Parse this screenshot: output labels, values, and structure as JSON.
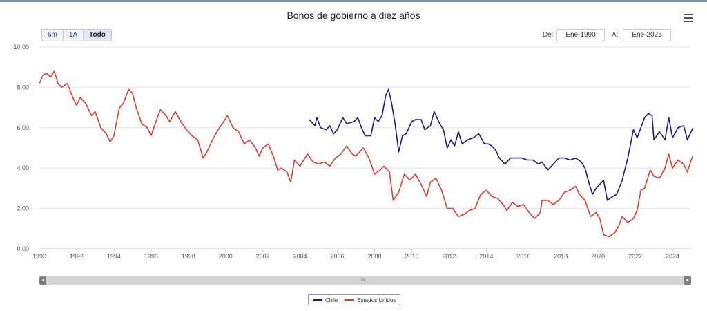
{
  "header": {
    "title": "Bonos de gobierno a diez años"
  },
  "range_selector": {
    "buttons": [
      {
        "label": "6m",
        "active": false
      },
      {
        "label": "1A",
        "active": false
      },
      {
        "label": "Todo",
        "active": true
      }
    ],
    "from_label": "De:",
    "from_value": "Ene-1990",
    "to_label": "A:",
    "to_value": "Ene-2025"
  },
  "colors": {
    "chile": "#1a1a8c",
    "usa": "#e8392c"
  },
  "navigator": {
    "grip": "III"
  },
  "chart_data": {
    "type": "line",
    "title": "Bonos de gobierno a diez años",
    "xlabel": "",
    "ylabel": "",
    "xlim": [
      1990,
      2025
    ],
    "ylim": [
      0,
      10
    ],
    "y_ticks": [
      "0,00",
      "2,00",
      "4,00",
      "6,00",
      "8,00",
      "10,00"
    ],
    "x_ticks": [
      "1990",
      "1992",
      "1994",
      "1996",
      "1998",
      "2000",
      "2002",
      "2004",
      "2006",
      "2008",
      "2010",
      "2012",
      "2014",
      "2016",
      "2018",
      "2020",
      "2022",
      "2024"
    ],
    "grid": true,
    "legend_position": "bottom-center",
    "series": [
      {
        "name": "Chile",
        "color": "#1a1a8c",
        "points": [
          [
            2004.5,
            6.4
          ],
          [
            2004.8,
            6.1
          ],
          [
            2004.9,
            6.5
          ],
          [
            2005.1,
            6.0
          ],
          [
            2005.4,
            5.9
          ],
          [
            2005.6,
            6.1
          ],
          [
            2005.8,
            5.7
          ],
          [
            2006.0,
            5.9
          ],
          [
            2006.3,
            6.5
          ],
          [
            2006.5,
            6.2
          ],
          [
            2006.9,
            6.3
          ],
          [
            2007.1,
            6.5
          ],
          [
            2007.3,
            6.0
          ],
          [
            2007.5,
            5.6
          ],
          [
            2007.8,
            5.6
          ],
          [
            2008.0,
            6.5
          ],
          [
            2008.2,
            6.3
          ],
          [
            2008.4,
            6.6
          ],
          [
            2008.6,
            7.6
          ],
          [
            2008.75,
            7.9
          ],
          [
            2008.9,
            7.3
          ],
          [
            2009.1,
            6.2
          ],
          [
            2009.3,
            4.8
          ],
          [
            2009.5,
            5.6
          ],
          [
            2009.7,
            5.7
          ],
          [
            2010.0,
            6.3
          ],
          [
            2010.2,
            6.4
          ],
          [
            2010.5,
            6.4
          ],
          [
            2010.7,
            5.9
          ],
          [
            2011.0,
            6.1
          ],
          [
            2011.2,
            6.8
          ],
          [
            2011.5,
            6.2
          ],
          [
            2011.7,
            5.9
          ],
          [
            2011.9,
            5.0
          ],
          [
            2012.1,
            5.4
          ],
          [
            2012.3,
            5.1
          ],
          [
            2012.5,
            5.8
          ],
          [
            2012.7,
            5.2
          ],
          [
            2013.0,
            5.4
          ],
          [
            2013.3,
            5.5
          ],
          [
            2013.6,
            5.7
          ],
          [
            2013.9,
            5.2
          ],
          [
            2014.1,
            5.2
          ],
          [
            2014.3,
            5.1
          ],
          [
            2014.5,
            4.9
          ],
          [
            2014.7,
            4.5
          ],
          [
            2015.0,
            4.2
          ],
          [
            2015.3,
            4.5
          ],
          [
            2015.6,
            4.5
          ],
          [
            2015.9,
            4.5
          ],
          [
            2016.2,
            4.4
          ],
          [
            2016.5,
            4.4
          ],
          [
            2016.8,
            4.2
          ],
          [
            2017.0,
            4.3
          ],
          [
            2017.3,
            3.9
          ],
          [
            2017.6,
            4.2
          ],
          [
            2017.9,
            4.5
          ],
          [
            2018.2,
            4.5
          ],
          [
            2018.5,
            4.4
          ],
          [
            2018.8,
            4.5
          ],
          [
            2019.1,
            4.3
          ],
          [
            2019.3,
            4.0
          ],
          [
            2019.5,
            3.3
          ],
          [
            2019.7,
            2.7
          ],
          [
            2019.9,
            3.0
          ],
          [
            2020.1,
            3.2
          ],
          [
            2020.3,
            3.4
          ],
          [
            2020.5,
            2.4
          ],
          [
            2020.8,
            2.6
          ],
          [
            2021.0,
            2.7
          ],
          [
            2021.3,
            3.4
          ],
          [
            2021.6,
            4.5
          ],
          [
            2021.9,
            5.9
          ],
          [
            2022.1,
            5.5
          ],
          [
            2022.3,
            6.0
          ],
          [
            2022.5,
            6.5
          ],
          [
            2022.7,
            6.7
          ],
          [
            2022.9,
            6.6
          ],
          [
            2023.0,
            5.4
          ],
          [
            2023.3,
            5.8
          ],
          [
            2023.6,
            5.4
          ],
          [
            2023.8,
            6.5
          ],
          [
            2024.0,
            5.5
          ],
          [
            2024.3,
            6.0
          ],
          [
            2024.6,
            6.1
          ],
          [
            2024.8,
            5.4
          ],
          [
            2025.0,
            5.8
          ],
          [
            2025.1,
            6.0
          ]
        ]
      },
      {
        "name": "Estados Unidos",
        "color": "#e8392c",
        "points": [
          [
            1990.0,
            8.2
          ],
          [
            1990.2,
            8.6
          ],
          [
            1990.4,
            8.7
          ],
          [
            1990.6,
            8.5
          ],
          [
            1990.8,
            8.8
          ],
          [
            1991.0,
            8.2
          ],
          [
            1991.2,
            8.0
          ],
          [
            1991.5,
            8.2
          ],
          [
            1991.8,
            7.5
          ],
          [
            1992.0,
            7.1
          ],
          [
            1992.2,
            7.5
          ],
          [
            1992.5,
            7.2
          ],
          [
            1992.8,
            6.6
          ],
          [
            1993.0,
            6.8
          ],
          [
            1993.3,
            6.0
          ],
          [
            1993.6,
            5.7
          ],
          [
            1993.8,
            5.3
          ],
          [
            1994.0,
            5.6
          ],
          [
            1994.3,
            7.0
          ],
          [
            1994.5,
            7.2
          ],
          [
            1994.8,
            7.9
          ],
          [
            1995.0,
            7.7
          ],
          [
            1995.2,
            7.0
          ],
          [
            1995.5,
            6.2
          ],
          [
            1995.8,
            6.0
          ],
          [
            1996.0,
            5.6
          ],
          [
            1996.3,
            6.4
          ],
          [
            1996.5,
            6.9
          ],
          [
            1996.8,
            6.6
          ],
          [
            1997.0,
            6.3
          ],
          [
            1997.3,
            6.8
          ],
          [
            1997.6,
            6.3
          ],
          [
            1997.9,
            5.9
          ],
          [
            1998.2,
            5.6
          ],
          [
            1998.5,
            5.4
          ],
          [
            1998.8,
            4.5
          ],
          [
            1999.0,
            4.8
          ],
          [
            1999.3,
            5.4
          ],
          [
            1999.6,
            5.9
          ],
          [
            1999.9,
            6.3
          ],
          [
            2000.1,
            6.6
          ],
          [
            2000.4,
            6.0
          ],
          [
            2000.7,
            5.8
          ],
          [
            2001.0,
            5.2
          ],
          [
            2001.3,
            5.4
          ],
          [
            2001.6,
            5.0
          ],
          [
            2001.8,
            4.6
          ],
          [
            2002.0,
            5.0
          ],
          [
            2002.3,
            5.2
          ],
          [
            2002.6,
            4.5
          ],
          [
            2002.8,
            3.9
          ],
          [
            2003.0,
            4.0
          ],
          [
            2003.3,
            3.8
          ],
          [
            2003.5,
            3.3
          ],
          [
            2003.7,
            4.4
          ],
          [
            2004.0,
            4.1
          ],
          [
            2004.4,
            4.7
          ],
          [
            2004.7,
            4.3
          ],
          [
            2005.0,
            4.2
          ],
          [
            2005.3,
            4.3
          ],
          [
            2005.6,
            4.1
          ],
          [
            2005.9,
            4.5
          ],
          [
            2006.2,
            4.7
          ],
          [
            2006.5,
            5.1
          ],
          [
            2006.8,
            4.7
          ],
          [
            2007.0,
            4.6
          ],
          [
            2007.4,
            5.0
          ],
          [
            2007.7,
            4.5
          ],
          [
            2008.0,
            3.7
          ],
          [
            2008.3,
            3.9
          ],
          [
            2008.5,
            4.1
          ],
          [
            2008.8,
            3.8
          ],
          [
            2009.0,
            2.4
          ],
          [
            2009.3,
            2.8
          ],
          [
            2009.6,
            3.7
          ],
          [
            2009.9,
            3.4
          ],
          [
            2010.2,
            3.7
          ],
          [
            2010.5,
            3.2
          ],
          [
            2010.8,
            2.6
          ],
          [
            2011.0,
            3.3
          ],
          [
            2011.3,
            3.5
          ],
          [
            2011.6,
            2.9
          ],
          [
            2011.9,
            2.0
          ],
          [
            2012.2,
            2.0
          ],
          [
            2012.5,
            1.6
          ],
          [
            2012.8,
            1.7
          ],
          [
            2013.1,
            1.9
          ],
          [
            2013.4,
            2.0
          ],
          [
            2013.7,
            2.7
          ],
          [
            2014.0,
            2.9
          ],
          [
            2014.3,
            2.6
          ],
          [
            2014.6,
            2.5
          ],
          [
            2014.9,
            2.2
          ],
          [
            2015.1,
            1.9
          ],
          [
            2015.4,
            2.3
          ],
          [
            2015.7,
            2.1
          ],
          [
            2016.0,
            2.2
          ],
          [
            2016.3,
            1.8
          ],
          [
            2016.6,
            1.5
          ],
          [
            2016.9,
            1.8
          ],
          [
            2017.0,
            2.4
          ],
          [
            2017.3,
            2.4
          ],
          [
            2017.6,
            2.2
          ],
          [
            2017.9,
            2.4
          ],
          [
            2018.2,
            2.8
          ],
          [
            2018.5,
            2.9
          ],
          [
            2018.8,
            3.1
          ],
          [
            2019.0,
            2.7
          ],
          [
            2019.3,
            2.4
          ],
          [
            2019.6,
            1.6
          ],
          [
            2019.9,
            1.8
          ],
          [
            2020.1,
            1.5
          ],
          [
            2020.3,
            0.7
          ],
          [
            2020.6,
            0.6
          ],
          [
            2020.9,
            0.8
          ],
          [
            2021.1,
            1.1
          ],
          [
            2021.3,
            1.6
          ],
          [
            2021.6,
            1.3
          ],
          [
            2021.9,
            1.5
          ],
          [
            2022.1,
            1.9
          ],
          [
            2022.3,
            2.9
          ],
          [
            2022.5,
            3.0
          ],
          [
            2022.8,
            3.9
          ],
          [
            2023.0,
            3.6
          ],
          [
            2023.3,
            3.5
          ],
          [
            2023.6,
            4.0
          ],
          [
            2023.8,
            4.7
          ],
          [
            2024.0,
            4.0
          ],
          [
            2024.3,
            4.4
          ],
          [
            2024.6,
            4.2
          ],
          [
            2024.8,
            3.8
          ],
          [
            2025.0,
            4.4
          ],
          [
            2025.1,
            4.6
          ]
        ]
      }
    ]
  }
}
